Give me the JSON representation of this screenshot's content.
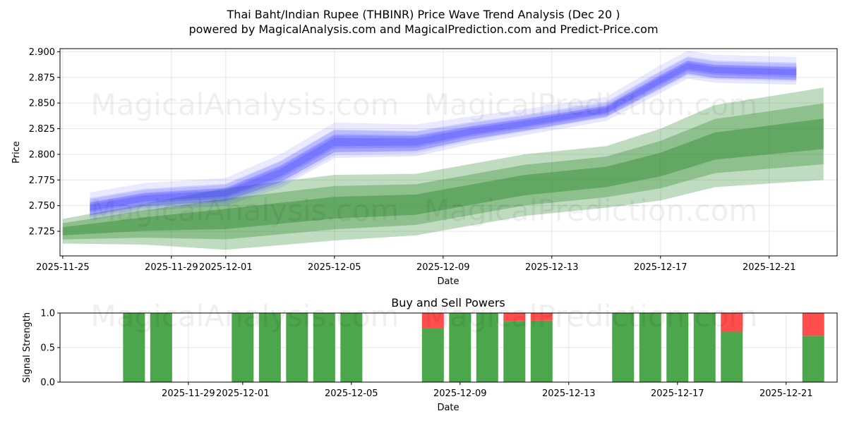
{
  "title_line1": "Thai Baht/Indian Rupee (THBINR) Price Wave Trend Analysis (Dec 20 )",
  "title_line2": "powered by MagicalAnalysis.com and MagicalPrediction.com and Predict-Price.com",
  "watermarks": [
    "MagicalAnalysis.com",
    "MagicalPrediction.com"
  ],
  "colors": {
    "blue": "#3333ff",
    "green": "#2e8b2e",
    "buy": "#4ca64c",
    "sell": "#ff4d4d",
    "grid": "#e6e6e6"
  },
  "chart_data": [
    {
      "type": "area",
      "name": "price-wave-trend",
      "xlabel": "Date",
      "ylabel": "Price",
      "ylim": [
        2.701,
        2.903
      ],
      "xlim": [
        "2025-11-25",
        "2025-12-23"
      ],
      "xticks": [
        "2025-11-25",
        "2025-11-29",
        "2025-12-01",
        "2025-12-05",
        "2025-12-09",
        "2025-12-13",
        "2025-12-17",
        "2025-12-21"
      ],
      "yticks": [
        2.725,
        2.75,
        2.775,
        2.8,
        2.825,
        2.85,
        2.875,
        2.9
      ],
      "yticklabels": [
        "2.725",
        "2.750",
        "2.775",
        "2.800",
        "2.825",
        "2.850",
        "2.875",
        "2.900"
      ],
      "series": [
        {
          "name": "price-waves",
          "color": "blue",
          "x": [
            "2025-11-26",
            "2025-11-28",
            "2025-12-01",
            "2025-12-03",
            "2025-12-05",
            "2025-12-08",
            "2025-12-10",
            "2025-12-12",
            "2025-12-15",
            "2025-12-17",
            "2025-12-18",
            "2025-12-19",
            "2025-12-22"
          ],
          "values": [
            2.748,
            2.757,
            2.762,
            2.782,
            2.812,
            2.812,
            2.822,
            2.83,
            2.843,
            2.872,
            2.886,
            2.882,
            2.88
          ],
          "spread": [
            0.012,
            0.012,
            0.012,
            0.015,
            0.016,
            0.014,
            0.012,
            0.011,
            0.01,
            0.012,
            0.012,
            0.012,
            0.012
          ]
        },
        {
          "name": "trend-band",
          "color": "green",
          "x": [
            "2025-11-25",
            "2025-11-28",
            "2025-12-01",
            "2025-12-05",
            "2025-12-08",
            "2025-12-12",
            "2025-12-15",
            "2025-12-17",
            "2025-12-19",
            "2025-12-23"
          ],
          "values": [
            2.725,
            2.732,
            2.737,
            2.748,
            2.751,
            2.77,
            2.778,
            2.79,
            2.808,
            2.82
          ],
          "spread": [
            0.012,
            0.02,
            0.03,
            0.032,
            0.03,
            0.03,
            0.03,
            0.035,
            0.04,
            0.045
          ]
        }
      ]
    },
    {
      "type": "bar",
      "name": "buy-and-sell-powers",
      "title": "Buy and Sell Powers",
      "xlabel": "Date",
      "ylabel": "Signal Strength",
      "ylim": [
        0,
        1.0
      ],
      "yticklabels": [
        "0.0",
        "0.5",
        "1.0"
      ],
      "xticks": [
        "2025-11-29",
        "2025-12-01",
        "2025-12-05",
        "2025-12-09",
        "2025-12-13",
        "2025-12-17",
        "2025-12-21"
      ],
      "categories": [
        "2025-11-27",
        "2025-11-28",
        "2025-12-01",
        "2025-12-02",
        "2025-12-03",
        "2025-12-04",
        "2025-12-05",
        "2025-12-08",
        "2025-12-09",
        "2025-12-10",
        "2025-12-11",
        "2025-12-12",
        "2025-12-15",
        "2025-12-16",
        "2025-12-17",
        "2025-12-18",
        "2025-12-19",
        "2025-12-22"
      ],
      "series": [
        {
          "name": "Buy",
          "color": "buy",
          "values": [
            1.0,
            1.0,
            1.0,
            1.0,
            1.0,
            1.0,
            1.0,
            0.78,
            1.0,
            1.0,
            0.88,
            0.89,
            1.0,
            1.0,
            1.0,
            1.0,
            0.73,
            0.67
          ]
        },
        {
          "name": "Sell",
          "color": "sell",
          "values": [
            0.0,
            0.0,
            0.0,
            0.0,
            0.0,
            0.0,
            0.0,
            0.22,
            0.0,
            0.0,
            0.12,
            0.11,
            0.0,
            0.0,
            0.0,
            0.0,
            0.27,
            0.33
          ]
        }
      ]
    }
  ]
}
